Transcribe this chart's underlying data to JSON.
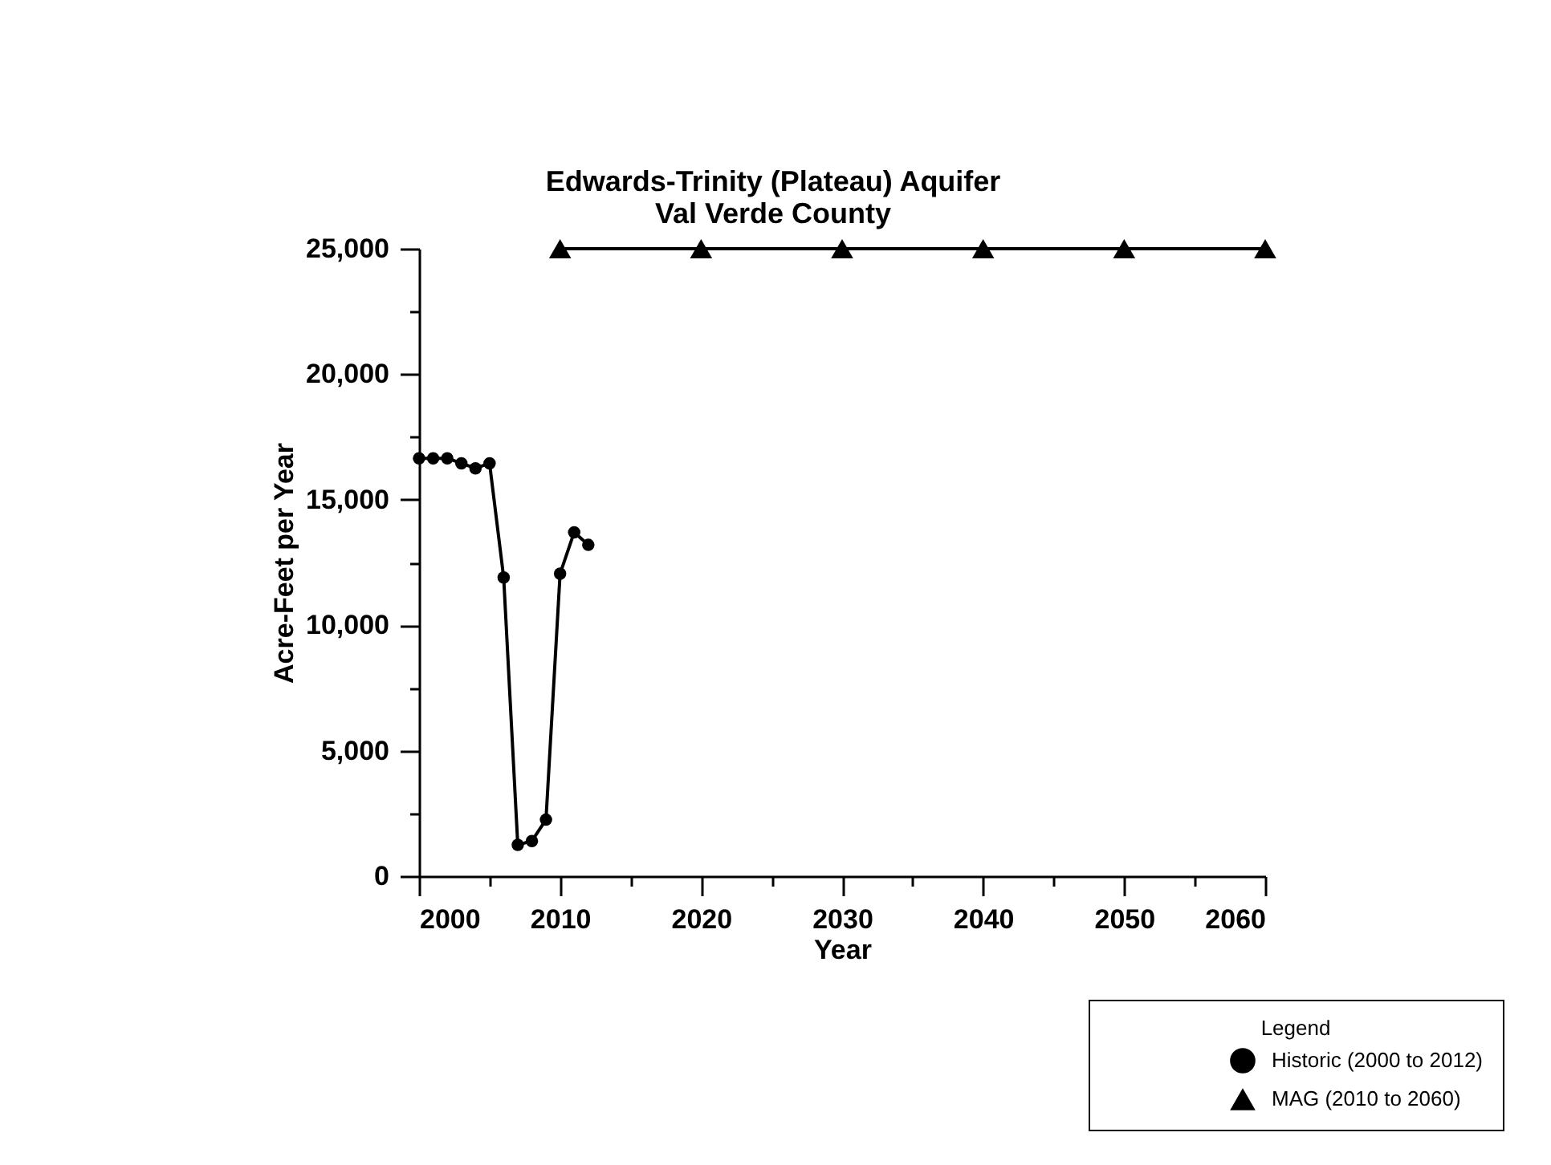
{
  "chart_data": {
    "type": "line",
    "title": "Edwards-Trinity (Plateau) Aquifer",
    "subtitle": "Val Verde County",
    "xlabel": "Year",
    "ylabel": "Acre-Feet per Year",
    "legend_title": "Legend",
    "series": [
      {
        "name": "Historic (2000 to 2012)",
        "color": "#000000",
        "marker": "circle",
        "x": [
          2000,
          2001,
          2002,
          2003,
          2004,
          2005,
          2006,
          2007,
          2008,
          2009,
          2010,
          2011,
          2012
        ],
        "values": [
          16650,
          16650,
          16650,
          16450,
          16250,
          16450,
          11900,
          1250,
          1400,
          2250,
          12050,
          13700,
          13200
        ]
      },
      {
        "name": "MAG (2010 to 2060)",
        "color": "#000000",
        "marker": "triangle",
        "x": [
          2010,
          2020,
          2030,
          2040,
          2050,
          2060
        ],
        "values": [
          25000,
          25000,
          25000,
          25000,
          25000,
          25000
        ]
      }
    ],
    "xlim": [
      2000,
      2060
    ],
    "xticks": [
      2000,
      {
        "value": 2005,
        "label": null
      },
      2010,
      {
        "value": 2015,
        "label": null
      },
      2020,
      {
        "value": 2025,
        "label": null
      },
      2030,
      {
        "value": 2035,
        "label": null
      },
      2040,
      {
        "value": 2045,
        "label": null
      },
      2050,
      {
        "value": 2055,
        "label": null
      },
      2060
    ],
    "ylim": [
      0,
      25000
    ],
    "yticks": [
      0,
      {
        "value": 2500,
        "label": null
      },
      {
        "value": 5000,
        "label": "5,000"
      },
      {
        "value": 7500,
        "label": null
      },
      {
        "value": 10000,
        "label": "10,000"
      },
      {
        "value": 12500,
        "label": null
      },
      {
        "value": 15000,
        "label": "15,000"
      },
      {
        "value": 17500,
        "label": null
      },
      {
        "value": 20000,
        "label": "20,000"
      },
      {
        "value": 22500,
        "label": null
      },
      {
        "value": 25000,
        "label": "25,000"
      }
    ],
    "grid": false,
    "legend": "bottom right",
    "line_style": "solid"
  }
}
